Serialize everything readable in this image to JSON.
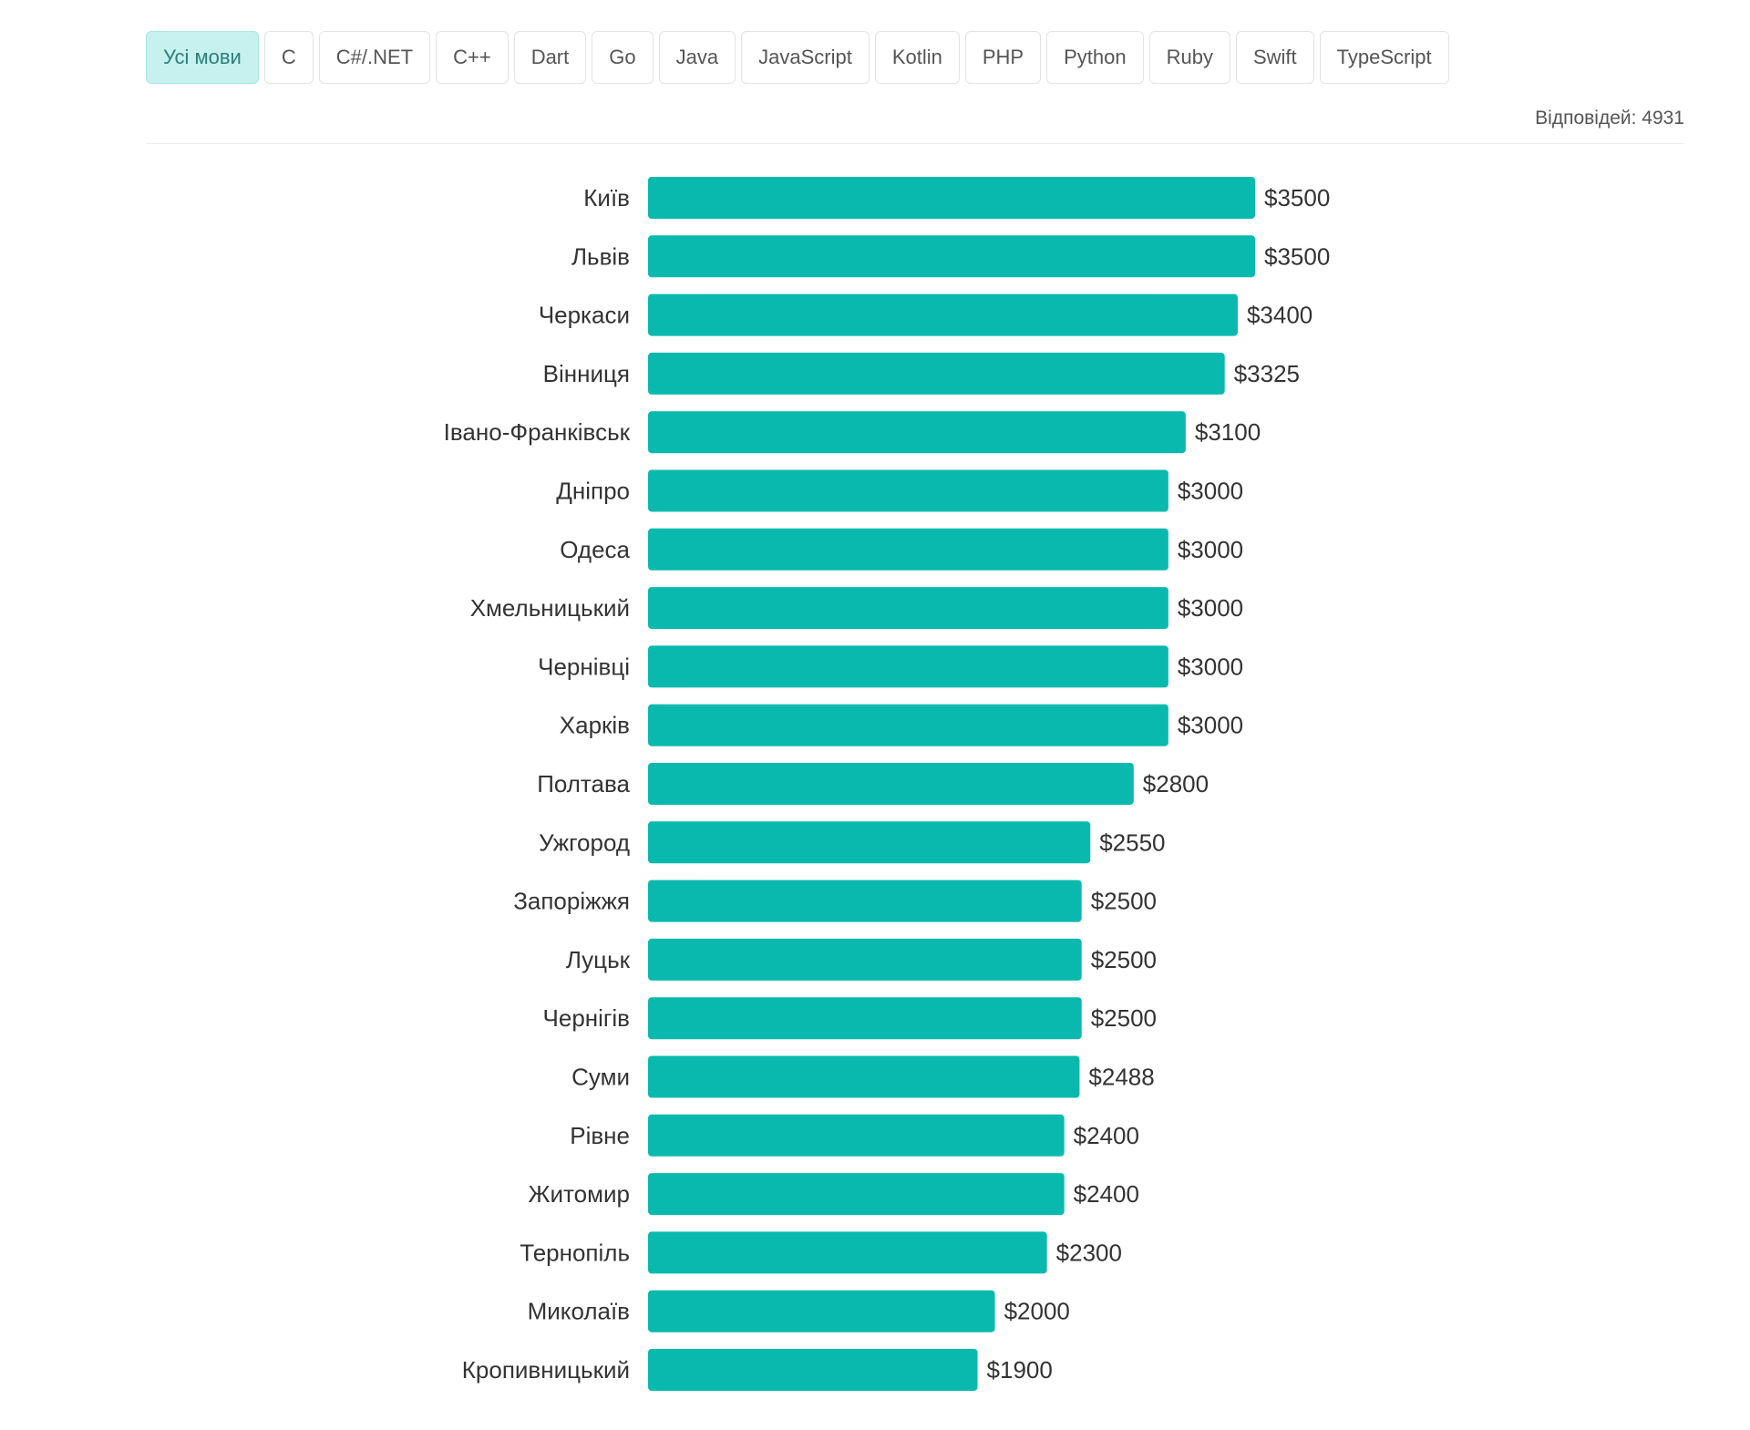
{
  "tabs": [
    {
      "label": "Усі мови",
      "active": true
    },
    {
      "label": "C",
      "active": false
    },
    {
      "label": "C#/.NET",
      "active": false
    },
    {
      "label": "C++",
      "active": false
    },
    {
      "label": "Dart",
      "active": false
    },
    {
      "label": "Go",
      "active": false
    },
    {
      "label": "Java",
      "active": false
    },
    {
      "label": "JavaScript",
      "active": false
    },
    {
      "label": "Kotlin",
      "active": false
    },
    {
      "label": "PHP",
      "active": false
    },
    {
      "label": "Python",
      "active": false
    },
    {
      "label": "Ruby",
      "active": false
    },
    {
      "label": "Swift",
      "active": false
    },
    {
      "label": "TypeScript",
      "active": false
    }
  ],
  "responses_label": "Відповідей: 4931",
  "colors": {
    "bar": "#0ab9ad",
    "active_tab_bg": "#c6f1ef",
    "active_tab_text": "#2b7f7a"
  },
  "chart_data": {
    "type": "bar",
    "orientation": "horizontal",
    "categories": [
      "Київ",
      "Львів",
      "Черкаси",
      "Вінниця",
      "Івано-Франківськ",
      "Дніпро",
      "Одеса",
      "Хмельницький",
      "Чернівці",
      "Харків",
      "Полтава",
      "Ужгород",
      "Запоріжжя",
      "Луцьк",
      "Чернігів",
      "Суми",
      "Рівне",
      "Житомир",
      "Тернопіль",
      "Миколаїв",
      "Кропивницький"
    ],
    "values": [
      3500,
      3500,
      3400,
      3325,
      3100,
      3000,
      3000,
      3000,
      3000,
      3000,
      2800,
      2550,
      2500,
      2500,
      2500,
      2488,
      2400,
      2400,
      2300,
      2000,
      1900
    ],
    "value_labels": [
      "$3500",
      "$3500",
      "$3400",
      "$3325",
      "$3100",
      "$3000",
      "$3000",
      "$3000",
      "$3000",
      "$3000",
      "$2800",
      "$2550",
      "$2500",
      "$2500",
      "$2500",
      "$2488",
      "$2400",
      "$2400",
      "$2300",
      "$2000",
      "$1900"
    ],
    "title": "",
    "xlabel": "",
    "ylabel": "",
    "xlim": [
      0,
      3500
    ],
    "grid": false,
    "legend": "none"
  }
}
